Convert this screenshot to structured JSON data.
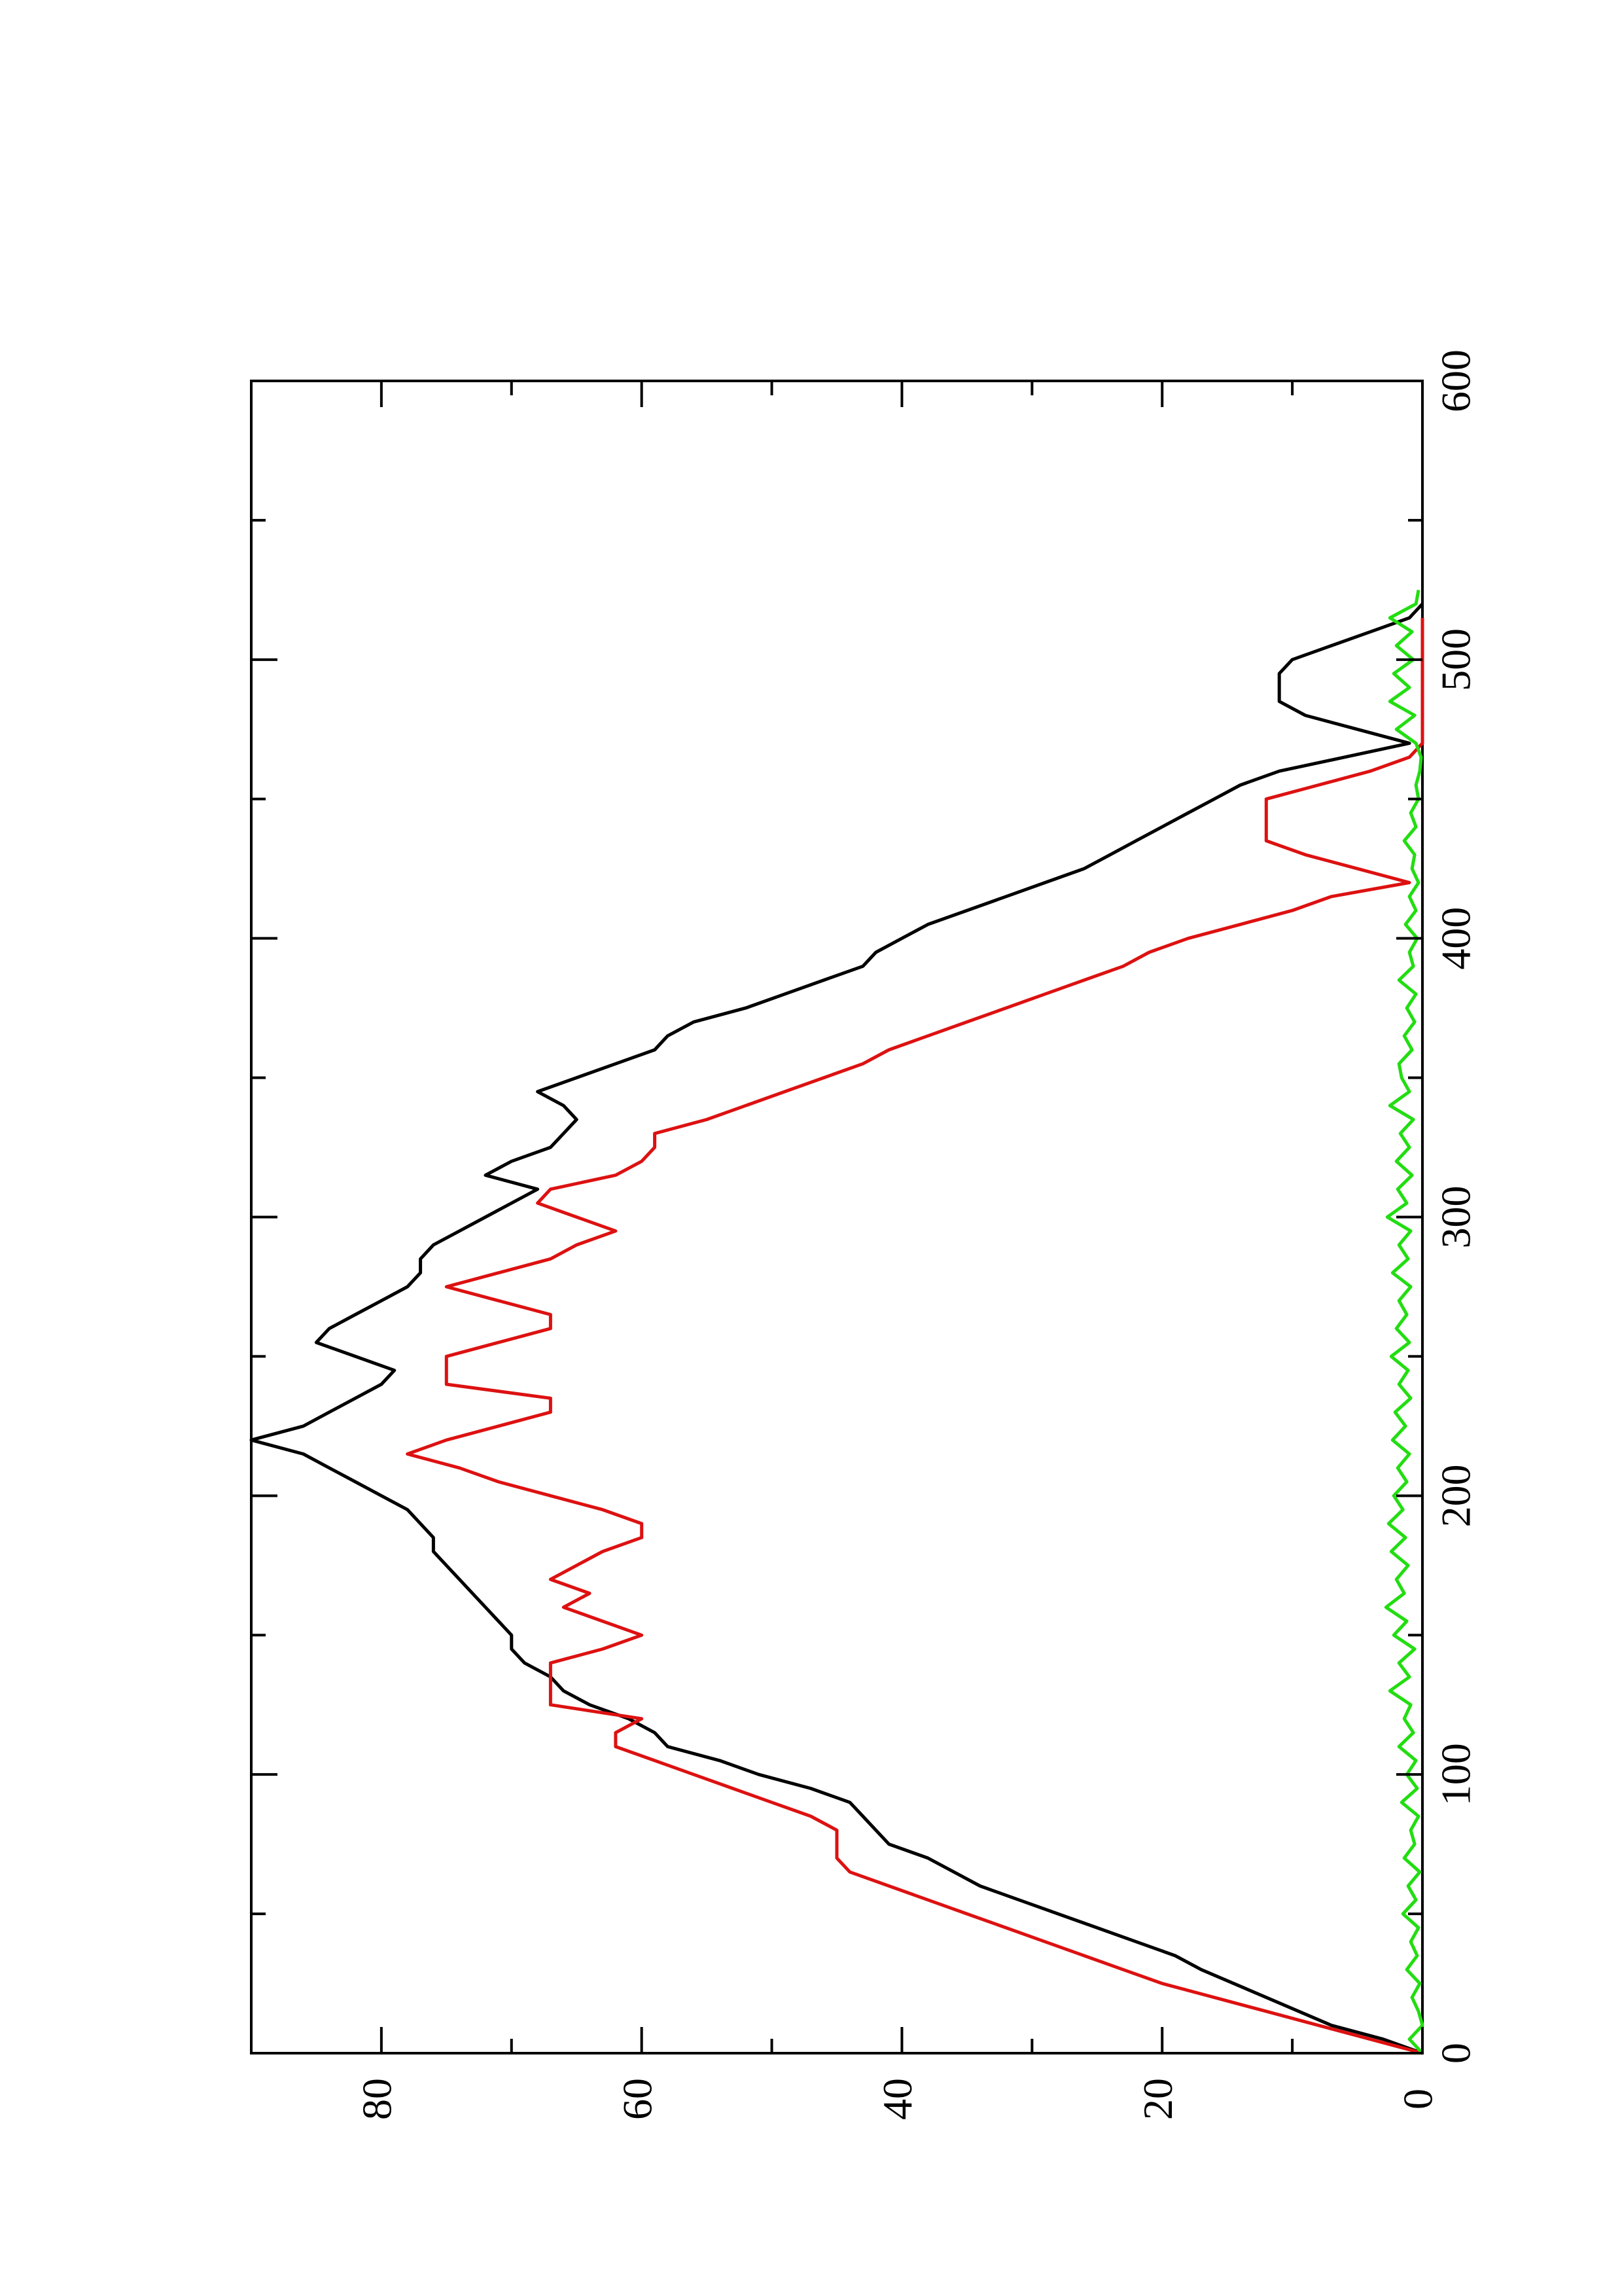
{
  "chart_data": {
    "type": "line",
    "orientation": "rotated-90-ccw",
    "title": "",
    "xlabel": "",
    "ylabel": "",
    "xlim": [
      0,
      600
    ],
    "ylim": [
      0,
      90
    ],
    "x_ticks": [
      0,
      100,
      200,
      300,
      400,
      500,
      600
    ],
    "x_tick_labels": [
      "0",
      "100",
      "200",
      "300",
      "400",
      "500",
      "600"
    ],
    "x_minor_ticks": [
      50,
      150,
      250,
      350,
      450,
      550
    ],
    "y_ticks": [
      0,
      20,
      40,
      60,
      80
    ],
    "y_tick_labels": [
      "0",
      "20",
      "40",
      "60",
      "80"
    ],
    "y_minor_ticks": [
      10,
      30,
      50,
      70
    ],
    "grid": false,
    "legend": "none",
    "series": [
      {
        "color": "#000000",
        "x": [
          0,
          5,
          10,
          20,
          30,
          35,
          40,
          45,
          50,
          55,
          60,
          65,
          70,
          75,
          80,
          85,
          90,
          95,
          100,
          105,
          110,
          115,
          120,
          125,
          130,
          135,
          140,
          145,
          150,
          155,
          160,
          165,
          170,
          175,
          180,
          185,
          190,
          195,
          200,
          205,
          210,
          215,
          220,
          225,
          230,
          235,
          240,
          245,
          250,
          255,
          260,
          265,
          270,
          275,
          280,
          285,
          290,
          295,
          300,
          305,
          310,
          315,
          320,
          325,
          330,
          335,
          340,
          345,
          350,
          355,
          360,
          365,
          370,
          375,
          380,
          385,
          390,
          395,
          400,
          405,
          410,
          415,
          420,
          425,
          430,
          435,
          440,
          445,
          450,
          455,
          460,
          465,
          470,
          475,
          480,
          485,
          490,
          495,
          500,
          505,
          510,
          515,
          520
        ],
        "values": [
          0,
          3,
          7,
          12,
          17,
          19,
          22,
          25,
          28,
          31,
          34,
          36,
          38,
          41,
          42,
          43,
          44,
          47,
          51,
          54,
          58,
          59,
          61,
          64,
          66,
          67,
          69,
          70,
          70,
          71,
          72,
          73,
          74,
          75,
          76,
          76,
          77,
          78,
          80,
          82,
          84,
          86,
          90,
          86,
          84,
          82,
          80,
          79,
          82,
          85,
          84,
          82,
          80,
          78,
          77,
          77,
          76,
          74,
          72,
          70,
          68,
          72,
          70,
          67,
          66,
          65,
          66,
          68,
          65,
          62,
          59,
          58,
          56,
          52,
          49,
          46,
          43,
          42,
          40,
          38,
          35,
          32,
          29,
          26,
          24,
          22,
          20,
          18,
          16,
          14,
          11,
          6,
          1,
          5,
          9,
          11,
          11,
          11,
          10,
          7,
          4,
          1,
          0
        ]
      },
      {
        "color": "#dd1111",
        "x": [
          0,
          5,
          10,
          15,
          20,
          25,
          30,
          35,
          40,
          45,
          50,
          55,
          60,
          65,
          70,
          75,
          80,
          85,
          90,
          95,
          100,
          105,
          110,
          115,
          120,
          125,
          130,
          135,
          140,
          145,
          150,
          155,
          160,
          165,
          170,
          175,
          180,
          185,
          190,
          195,
          200,
          205,
          210,
          215,
          220,
          225,
          230,
          235,
          240,
          245,
          250,
          255,
          260,
          265,
          270,
          275,
          280,
          285,
          290,
          295,
          300,
          305,
          310,
          315,
          320,
          325,
          330,
          335,
          340,
          345,
          350,
          355,
          360,
          365,
          370,
          375,
          380,
          385,
          390,
          395,
          400,
          405,
          410,
          415,
          420,
          425,
          430,
          435,
          440,
          445,
          450,
          455,
          460,
          465,
          470,
          475,
          480,
          485,
          490,
          495,
          500,
          505,
          510,
          515
        ],
        "values": [
          0,
          4,
          8,
          12,
          16,
          20,
          23,
          26,
          29,
          32,
          35,
          38,
          41,
          44,
          45,
          45,
          45,
          47,
          50,
          53,
          56,
          59,
          62,
          62,
          60,
          67,
          67,
          67,
          67,
          63,
          60,
          63,
          66,
          64,
          67,
          65,
          63,
          60,
          60,
          63,
          67,
          71,
          74,
          78,
          75,
          71,
          67,
          67,
          75,
          75,
          75,
          71,
          67,
          67,
          71,
          75,
          71,
          67,
          65,
          62,
          65,
          68,
          67,
          62,
          60,
          59,
          59,
          55,
          52,
          49,
          46,
          43,
          41,
          38,
          35,
          32,
          29,
          26,
          23,
          21,
          18,
          14,
          10,
          7,
          1,
          5,
          9,
          12,
          12,
          12,
          12,
          8,
          4,
          1,
          0,
          0,
          0,
          0,
          0,
          0,
          0,
          0,
          0,
          0
        ]
      },
      {
        "color": "#22dd11",
        "x": [
          0,
          5,
          10,
          15,
          20,
          25,
          30,
          35,
          40,
          45,
          50,
          55,
          60,
          65,
          70,
          75,
          80,
          85,
          90,
          95,
          100,
          105,
          110,
          115,
          120,
          125,
          130,
          135,
          140,
          145,
          150,
          155,
          160,
          165,
          170,
          175,
          180,
          185,
          190,
          195,
          200,
          205,
          210,
          215,
          220,
          225,
          230,
          235,
          240,
          245,
          250,
          255,
          260,
          265,
          270,
          275,
          280,
          285,
          290,
          295,
          300,
          305,
          310,
          315,
          320,
          325,
          330,
          335,
          340,
          345,
          350,
          355,
          360,
          365,
          370,
          375,
          380,
          385,
          390,
          395,
          400,
          405,
          410,
          415,
          420,
          425,
          430,
          435,
          440,
          445,
          450,
          455,
          460,
          465,
          470,
          475,
          480,
          485,
          490,
          495,
          500,
          505,
          510,
          515,
          520,
          525
        ],
        "values": [
          0,
          1,
          0,
          0.3,
          0.8,
          0.2,
          1.2,
          0.4,
          0.9,
          0.3,
          1.5,
          0.5,
          1.1,
          0.2,
          1.4,
          0.6,
          0.9,
          0.3,
          1.6,
          0.4,
          1.2,
          0.5,
          1.8,
          0.7,
          1.4,
          0.9,
          2.5,
          1.0,
          1.8,
          0.6,
          2.2,
          1.2,
          2.8,
          1.4,
          2.0,
          1.1,
          2.4,
          1.3,
          2.6,
          1.5,
          2.2,
          1.2,
          1.9,
          1.0,
          2.3,
          1.3,
          2.1,
          0.9,
          1.8,
          1.1,
          2.4,
          1.0,
          2.0,
          1.2,
          1.8,
          0.9,
          2.3,
          1.1,
          1.8,
          0.9,
          2.7,
          1.2,
          1.9,
          0.8,
          2.0,
          1.0,
          1.7,
          0.7,
          2.5,
          1.0,
          1.6,
          1.8,
          0.8,
          1.4,
          0.6,
          1.2,
          0.5,
          1.8,
          0.7,
          1.0,
          0.4,
          1.3,
          0.5,
          1.0,
          0.3,
          0.8,
          0.6,
          1.4,
          0.5,
          0.9,
          0.3,
          0.5,
          0.2,
          0.1,
          0.5,
          2.0,
          0.6,
          2.5,
          1.0,
          2.2,
          0.7,
          2.0,
          0.8,
          2.5,
          0.5,
          0.3
        ]
      }
    ]
  }
}
